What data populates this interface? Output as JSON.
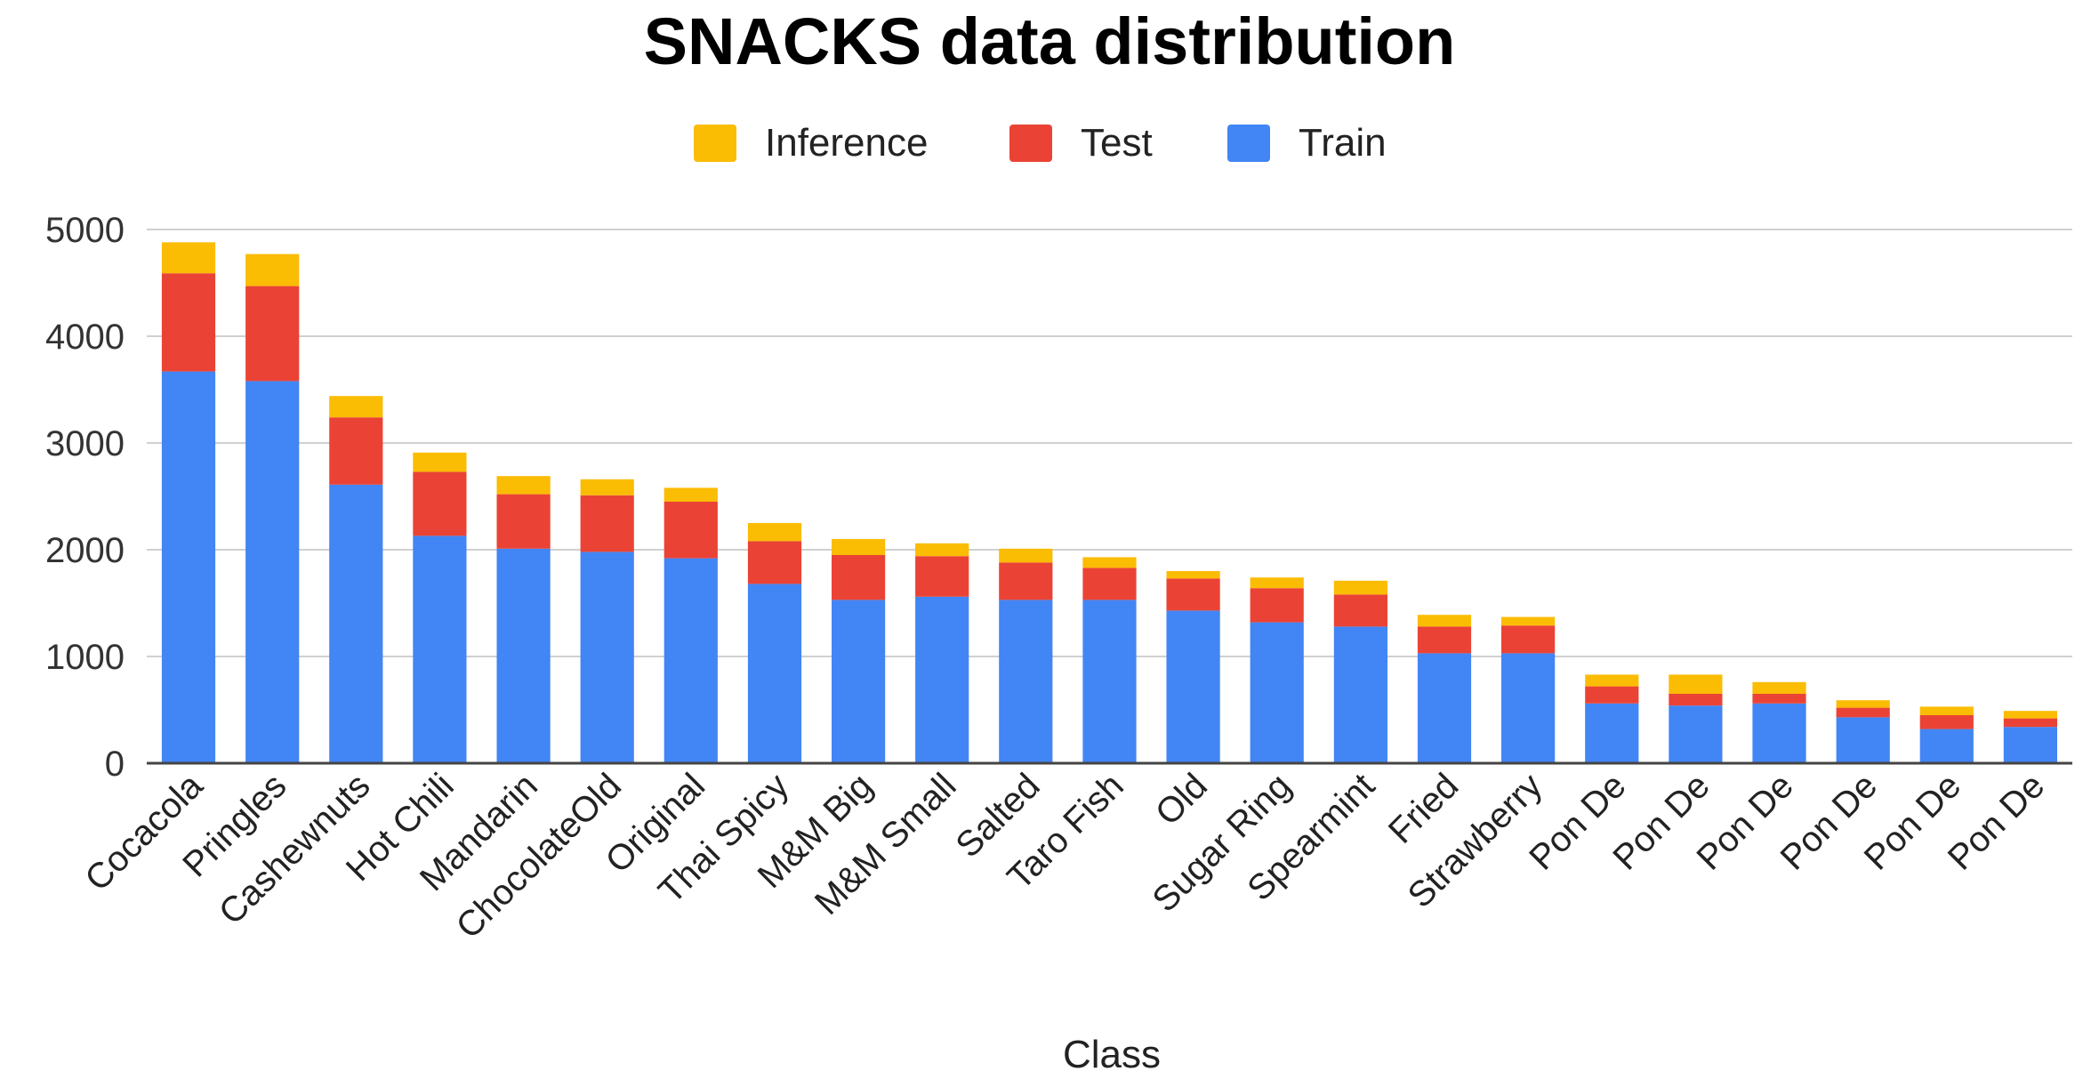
{
  "chart_data": {
    "type": "stacked-bar",
    "title": "SNACKS data distribution",
    "xlabel": "Class",
    "ylabel": "",
    "ylim": [
      0,
      5000
    ],
    "yticks": [
      0,
      1000,
      2000,
      3000,
      4000,
      5000
    ],
    "grid": true,
    "legend_position": "top-center",
    "legend_order": [
      "Inference",
      "Test",
      "Train"
    ],
    "categories": [
      "Cocacola",
      "Pringles",
      "Cashewnuts",
      "Hot Chili",
      "Mandarin",
      "ChocolateOld",
      "Original",
      "Thai Spicy",
      "M&M Big",
      "M&M Small",
      "Salted",
      "Taro Fish",
      "Old",
      "Sugar Ring",
      "Spearmint",
      "Fried",
      "Strawberry",
      "Pon De",
      "Pon De",
      "Pon De",
      "Pon De",
      "Pon De",
      "Pon De"
    ],
    "series": [
      {
        "name": "Train",
        "color": "#4285f4",
        "values": [
          3670,
          3580,
          2610,
          2130,
          2010,
          1980,
          1920,
          1680,
          1530,
          1560,
          1530,
          1530,
          1430,
          1320,
          1280,
          1030,
          1030,
          560,
          540,
          560,
          430,
          320,
          340
        ]
      },
      {
        "name": "Test",
        "color": "#ea4335",
        "values": [
          920,
          890,
          630,
          600,
          510,
          530,
          530,
          400,
          420,
          380,
          350,
          300,
          300,
          320,
          300,
          250,
          260,
          160,
          110,
          90,
          90,
          130,
          80
        ]
      },
      {
        "name": "Inference",
        "color": "#fbbc04",
        "values": [
          290,
          300,
          200,
          180,
          170,
          150,
          130,
          170,
          150,
          120,
          130,
          100,
          70,
          100,
          130,
          110,
          80,
          110,
          180,
          110,
          70,
          80,
          70
        ]
      }
    ]
  }
}
